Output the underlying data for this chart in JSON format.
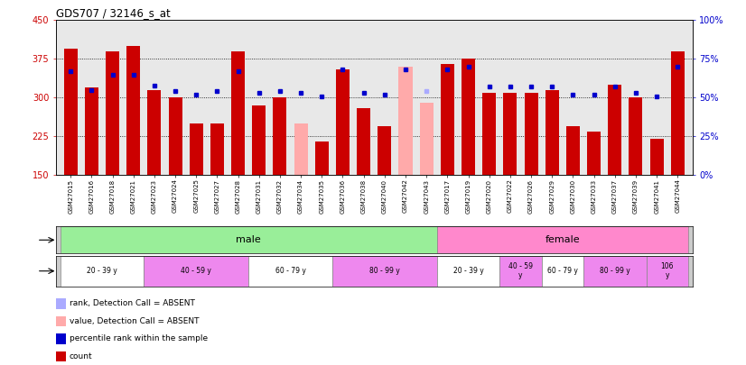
{
  "title": "GDS707 / 32146_s_at",
  "samples": [
    "GSM27015",
    "GSM27016",
    "GSM27018",
    "GSM27021",
    "GSM27023",
    "GSM27024",
    "GSM27025",
    "GSM27027",
    "GSM27028",
    "GSM27031",
    "GSM27032",
    "GSM27034",
    "GSM27035",
    "GSM27036",
    "GSM27038",
    "GSM27040",
    "GSM27042",
    "GSM27043",
    "GSM27017",
    "GSM27019",
    "GSM27020",
    "GSM27022",
    "GSM27026",
    "GSM27029",
    "GSM27030",
    "GSM27033",
    "GSM27037",
    "GSM27039",
    "GSM27041",
    "GSM27044"
  ],
  "count_values": [
    395,
    320,
    390,
    400,
    315,
    300,
    250,
    250,
    390,
    285,
    300,
    250,
    215,
    355,
    280,
    245,
    360,
    290,
    365,
    375,
    310,
    310,
    310,
    315,
    245,
    235,
    325,
    300,
    220,
    390
  ],
  "absent_bar_mask": [
    0,
    0,
    0,
    0,
    0,
    0,
    0,
    0,
    0,
    0,
    0,
    1,
    0,
    0,
    0,
    0,
    1,
    1,
    0,
    0,
    0,
    0,
    0,
    0,
    0,
    0,
    0,
    0,
    0,
    0
  ],
  "percentile_values": [
    67,
    55,
    65,
    65,
    58,
    54,
    52,
    54,
    67,
    53,
    54,
    53,
    51,
    68,
    53,
    52,
    68,
    54,
    68,
    70,
    57,
    57,
    57,
    57,
    52,
    52,
    57,
    53,
    51,
    70
  ],
  "absent_dot_mask": [
    0,
    0,
    0,
    0,
    0,
    0,
    0,
    0,
    0,
    0,
    0,
    0,
    0,
    0,
    0,
    0,
    0,
    1,
    0,
    0,
    0,
    0,
    0,
    0,
    0,
    0,
    0,
    0,
    0,
    0
  ],
  "ylim_left": [
    150,
    450
  ],
  "ylim_right": [
    0,
    100
  ],
  "yticks_left": [
    150,
    225,
    300,
    375,
    450
  ],
  "yticks_right": [
    0,
    25,
    50,
    75,
    100
  ],
  "bar_color": "#cc0000",
  "bar_absent_color": "#ffaaaa",
  "dot_color": "#0000cc",
  "dot_absent_color": "#aaaaff",
  "plot_bg": "#e8e8e8",
  "hline_values": [
    225,
    300,
    375
  ],
  "gender_groups": [
    {
      "label": "male",
      "start": 0,
      "end": 17,
      "color": "#99ee99"
    },
    {
      "label": "female",
      "start": 18,
      "end": 29,
      "color": "#ff88cc"
    }
  ],
  "age_groups": [
    {
      "label": "20 - 39 y",
      "start": 0,
      "end": 3,
      "color": "#ffffff"
    },
    {
      "label": "40 - 59 y",
      "start": 4,
      "end": 8,
      "color": "#ee88ee"
    },
    {
      "label": "60 - 79 y",
      "start": 9,
      "end": 12,
      "color": "#ffffff"
    },
    {
      "label": "80 - 99 y",
      "start": 13,
      "end": 17,
      "color": "#ee88ee"
    },
    {
      "label": "20 - 39 y",
      "start": 18,
      "end": 20,
      "color": "#ffffff"
    },
    {
      "label": "40 - 59\ny",
      "start": 21,
      "end": 22,
      "color": "#ee88ee"
    },
    {
      "label": "60 - 79 y",
      "start": 23,
      "end": 24,
      "color": "#ffffff"
    },
    {
      "label": "80 - 99 y",
      "start": 25,
      "end": 27,
      "color": "#ee88ee"
    },
    {
      "label": "106\ny",
      "start": 28,
      "end": 29,
      "color": "#ee88ee"
    }
  ],
  "legend": [
    {
      "label": "count",
      "color": "#cc0000"
    },
    {
      "label": "percentile rank within the sample",
      "color": "#0000cc"
    },
    {
      "label": "value, Detection Call = ABSENT",
      "color": "#ffaaaa"
    },
    {
      "label": "rank, Detection Call = ABSENT",
      "color": "#aaaaff"
    }
  ]
}
